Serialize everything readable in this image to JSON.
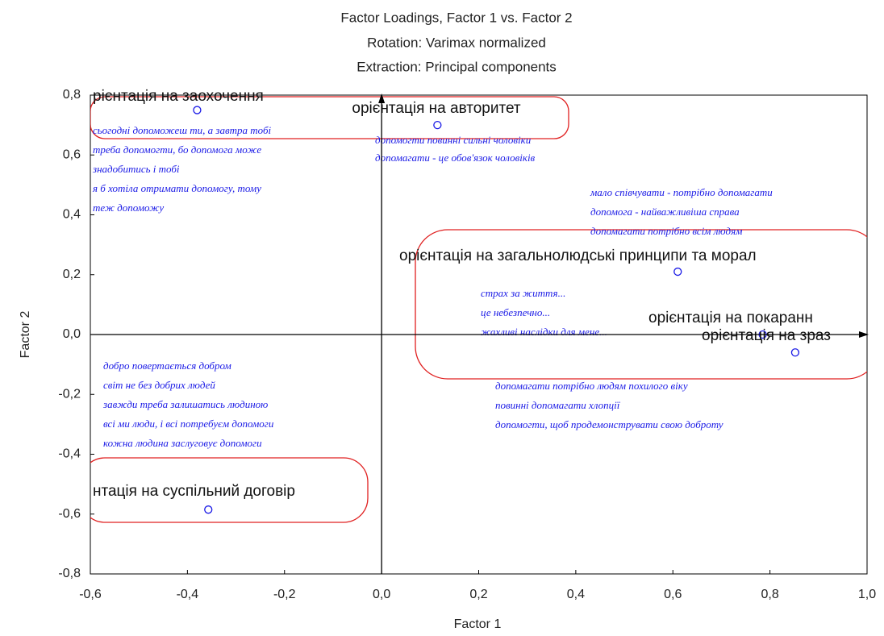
{
  "chart_data": {
    "type": "scatter",
    "title": "Factor Loadings, Factor 1 vs. Factor 2",
    "subtitle": [
      "Rotation: Varimax normalized",
      "Extraction: Principal components"
    ],
    "xlabel": "Factor 1",
    "ylabel": "Factor 2",
    "xlim": [
      -0.6,
      1.0
    ],
    "ylim": [
      -0.8,
      0.8
    ],
    "xticks": [
      {
        "value": -0.6,
        "label": "-0,6"
      },
      {
        "value": -0.4,
        "label": "-0,4"
      },
      {
        "value": -0.2,
        "label": "-0,2"
      },
      {
        "value": 0,
        "label": "0,0"
      },
      {
        "value": 0.2,
        "label": "0,2"
      },
      {
        "value": 0.4,
        "label": "0,4"
      },
      {
        "value": 0.6,
        "label": "0,6"
      },
      {
        "value": 0.8,
        "label": "0,8"
      },
      {
        "value": 1.0,
        "label": "1,0"
      }
    ],
    "yticks": [
      {
        "value": -0.8,
        "label": "-0,8"
      },
      {
        "value": -0.6,
        "label": "-0,6"
      },
      {
        "value": -0.4,
        "label": "-0,4"
      },
      {
        "value": -0.2,
        "label": "-0,2"
      },
      {
        "value": 0,
        "label": "0,0"
      },
      {
        "value": 0.2,
        "label": "0,2"
      },
      {
        "value": 0.4,
        "label": "0,4"
      },
      {
        "value": 0.6,
        "label": "0,6"
      },
      {
        "value": 0.8,
        "label": "0,8"
      }
    ],
    "color": "#1a1ae6",
    "points": {
      "labels": [
        "рієнтація на заохочення",
        "орієнтація на авторитет",
        "орієнтація на загальнолюдські принципи та морал",
        "орієнтація на покаранн",
        "орієнтація на зраз",
        "нтація на суспільний договір"
      ],
      "x": [
        -0.38,
        0.115,
        0.61,
        0.785,
        0.852,
        -0.357
      ],
      "y": [
        0.75,
        0.7,
        0.21,
        0.0,
        -0.06,
        -0.585
      ]
    },
    "annotations": [
      [
        "сьогодні допоможеш ти, а завтра тобі",
        "треба допомогти, бо допомога може",
        "знадобитись і тобі",
        "я б хотіла отримати допомогу, тому",
        "теж допоможу"
      ],
      [
        "допомогти повинні сильні чоловіки",
        "допомагати - це обов'язок чоловіків"
      ],
      [
        "мало співчувати - потрібно допомагати",
        "допомога - найважливіша справа",
        "допомагати потрібно всім людям"
      ],
      [
        "страх за життя...",
        "це небезпечно...",
        "жахливі наслідки для мене..."
      ],
      [
        "добро повертається добром",
        "світ не без добрих людей",
        "завжди треба залишатись людиною",
        "всі ми люди, і всі потребуєм допомоги",
        "кожна людина заслуговує допомоги"
      ],
      [
        "допомагати потрібно людям похилого віку",
        "повинні допомагати хлопції",
        "допомогти, щоб продемонструвати свою доброту"
      ]
    ]
  }
}
